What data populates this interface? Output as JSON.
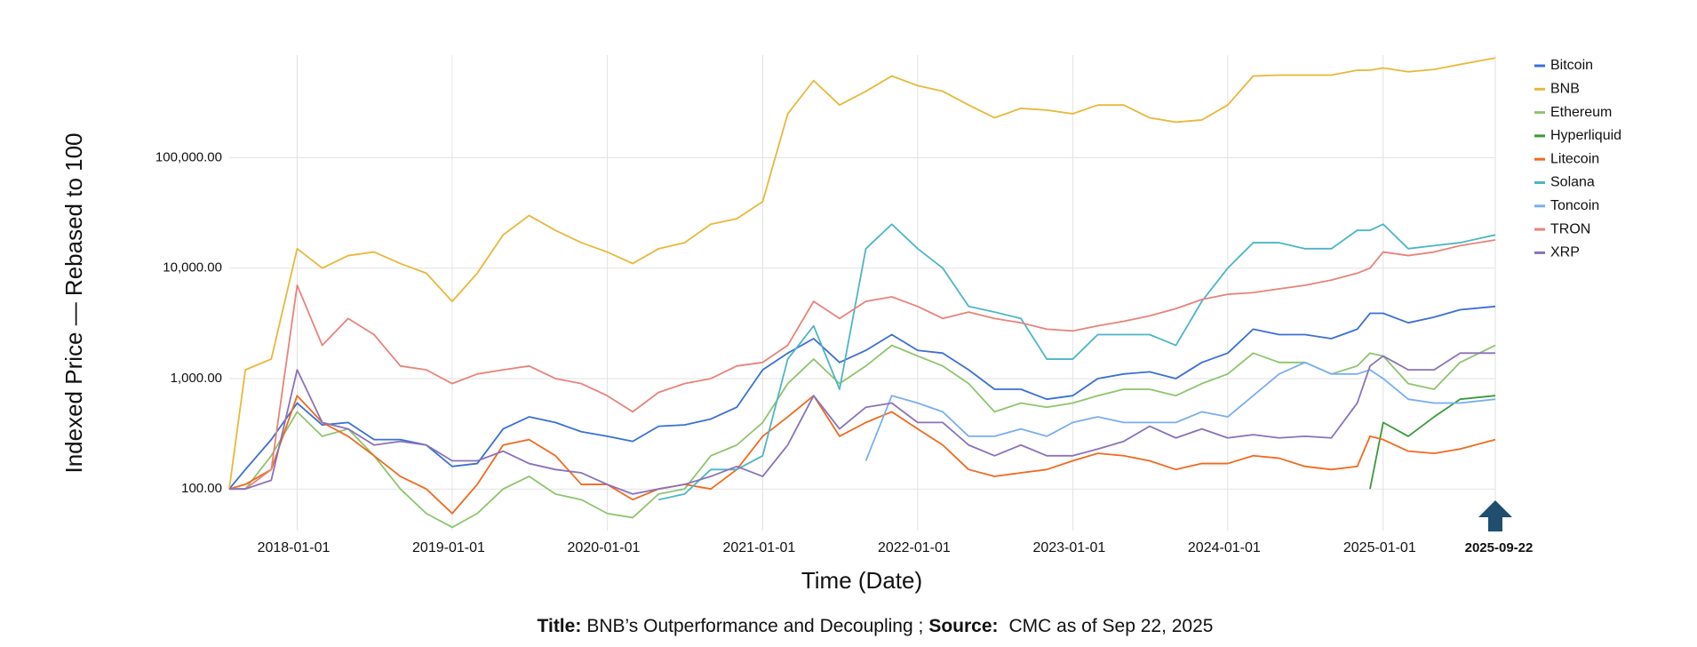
{
  "chart_data": {
    "type": "line",
    "y_label": "Indexed Price — Rebased to 100",
    "x_label": "Time (Date)",
    "caption": {
      "title_label": "Title:",
      "title": "BNB’s Outperformance and Decoupling ;",
      "source_label": "Source:",
      "source": "CMC as of Sep 22, 2025"
    },
    "log_y": true,
    "grid": true,
    "legend": "right",
    "xlim": [
      "2017-07-25",
      "2025-09-22"
    ],
    "xticks": [
      "2018-01-01",
      "2019-01-01",
      "2020-01-01",
      "2021-01-01",
      "2022-01-01",
      "2023-01-01",
      "2024-01-01",
      "2025-01-01",
      "2025-09-22"
    ],
    "ylim": [
      42,
      850000
    ],
    "yticks": [
      {
        "value": 100,
        "label": "100.00"
      },
      {
        "value": 1000,
        "label": "1,000.00"
      },
      {
        "value": 10000,
        "label": "10,000.00"
      },
      {
        "value": 100000,
        "label": "100,000.00"
      }
    ],
    "x": [
      "2017-07-25",
      "2017-09-01",
      "2017-11-01",
      "2018-01-01",
      "2018-03-01",
      "2018-05-01",
      "2018-07-01",
      "2018-09-01",
      "2018-11-01",
      "2019-01-01",
      "2019-03-01",
      "2019-05-01",
      "2019-07-01",
      "2019-09-01",
      "2019-11-01",
      "2020-01-01",
      "2020-03-01",
      "2020-05-01",
      "2020-07-01",
      "2020-09-01",
      "2020-11-01",
      "2021-01-01",
      "2021-03-01",
      "2021-05-01",
      "2021-07-01",
      "2021-09-01",
      "2021-11-01",
      "2022-01-01",
      "2022-03-01",
      "2022-05-01",
      "2022-07-01",
      "2022-09-01",
      "2022-11-01",
      "2023-01-01",
      "2023-03-01",
      "2023-05-01",
      "2023-07-01",
      "2023-09-01",
      "2023-11-01",
      "2024-01-01",
      "2024-03-01",
      "2024-05-01",
      "2024-07-01",
      "2024-09-01",
      "2024-11-01",
      "2024-12-01",
      "2025-01-01",
      "2025-03-01",
      "2025-05-01",
      "2025-07-01",
      "2025-09-22"
    ],
    "series": [
      {
        "name": "Bitcoin",
        "color": "#3b6fd6",
        "values": [
          100,
          150,
          280,
          600,
          380,
          400,
          280,
          280,
          250,
          160,
          170,
          350,
          450,
          400,
          330,
          300,
          270,
          370,
          380,
          430,
          550,
          1200,
          1700,
          2300,
          1400,
          1800,
          2500,
          1800,
          1700,
          1200,
          800,
          800,
          650,
          700,
          1000,
          1100,
          1150,
          1000,
          1400,
          1700,
          2800,
          2500,
          2500,
          2300,
          2800,
          3900,
          3900,
          3200,
          3600,
          4200,
          4500
        ]
      },
      {
        "name": "BNB",
        "color": "#e8b83a",
        "values": [
          100,
          1200,
          1500,
          15000,
          10000,
          13000,
          14000,
          11000,
          9000,
          5000,
          9000,
          20000,
          30000,
          22000,
          17000,
          14000,
          11000,
          15000,
          17000,
          25000,
          28000,
          40000,
          250000,
          500000,
          300000,
          400000,
          550000,
          450000,
          400000,
          300000,
          230000,
          280000,
          270000,
          250000,
          300000,
          300000,
          230000,
          210000,
          220000,
          300000,
          550000,
          560000,
          560000,
          560000,
          620000,
          620000,
          650000,
          600000,
          630000,
          700000,
          800000
        ]
      },
      {
        "name": "Ethereum",
        "color": "#8fc46e",
        "values": [
          100,
          100,
          200,
          500,
          300,
          350,
          200,
          100,
          60,
          45,
          60,
          100,
          130,
          90,
          80,
          60,
          55,
          90,
          100,
          200,
          250,
          400,
          900,
          1500,
          900,
          1300,
          2000,
          1600,
          1300,
          900,
          500,
          600,
          550,
          600,
          700,
          800,
          800,
          700,
          900,
          1100,
          1700,
          1400,
          1400,
          1100,
          1300,
          1700,
          1600,
          900,
          800,
          1400,
          2000
        ]
      },
      {
        "name": "Hyperliquid",
        "color": "#3a9a3a",
        "values": [
          null,
          null,
          null,
          null,
          null,
          null,
          null,
          null,
          null,
          null,
          null,
          null,
          null,
          null,
          null,
          null,
          null,
          null,
          null,
          null,
          null,
          null,
          null,
          null,
          null,
          null,
          null,
          null,
          null,
          null,
          null,
          null,
          null,
          null,
          null,
          null,
          null,
          null,
          null,
          null,
          null,
          null,
          null,
          null,
          null,
          100,
          400,
          300,
          450,
          650,
          700
        ]
      },
      {
        "name": "Litecoin",
        "color": "#f06a1e",
        "values": [
          100,
          110,
          150,
          700,
          400,
          300,
          200,
          130,
          100,
          60,
          110,
          250,
          280,
          200,
          110,
          110,
          80,
          100,
          110,
          100,
          150,
          300,
          450,
          700,
          300,
          400,
          500,
          350,
          250,
          150,
          130,
          140,
          150,
          180,
          210,
          200,
          180,
          150,
          170,
          170,
          200,
          190,
          160,
          150,
          160,
          300,
          280,
          220,
          210,
          230,
          280
        ]
      },
      {
        "name": "Solana",
        "color": "#4cb6c4",
        "values": [
          null,
          null,
          null,
          null,
          null,
          null,
          null,
          null,
          null,
          null,
          null,
          null,
          null,
          null,
          null,
          null,
          null,
          80,
          90,
          150,
          150,
          200,
          1500,
          3000,
          800,
          15000,
          25000,
          15000,
          10000,
          4500,
          4000,
          3500,
          1500,
          1500,
          2500,
          2500,
          2500,
          2000,
          5000,
          10000,
          17000,
          17000,
          15000,
          15000,
          22000,
          22000,
          25000,
          15000,
          16000,
          17000,
          20000
        ]
      },
      {
        "name": "Toncoin",
        "color": "#7aaef0",
        "values": [
          null,
          null,
          null,
          null,
          null,
          null,
          null,
          null,
          null,
          null,
          null,
          null,
          null,
          null,
          null,
          null,
          null,
          null,
          null,
          null,
          null,
          null,
          null,
          null,
          null,
          180,
          700,
          600,
          500,
          300,
          300,
          350,
          300,
          400,
          450,
          400,
          400,
          400,
          500,
          450,
          700,
          1100,
          1400,
          1100,
          1100,
          1200,
          1000,
          650,
          600,
          600,
          650
        ]
      },
      {
        "name": "TRON",
        "color": "#e8837a",
        "values": [
          100,
          100,
          150,
          7000,
          2000,
          3500,
          2500,
          1300,
          1200,
          900,
          1100,
          1200,
          1300,
          1000,
          900,
          700,
          500,
          750,
          900,
          1000,
          1300,
          1400,
          2000,
          5000,
          3500,
          5000,
          5500,
          4500,
          3500,
          4000,
          3500,
          3200,
          2800,
          2700,
          3000,
          3300,
          3700,
          4300,
          5200,
          5800,
          6000,
          6500,
          7000,
          7800,
          9000,
          10000,
          14000,
          13000,
          14000,
          16000,
          18000
        ]
      },
      {
        "name": "XRP",
        "color": "#8a72b8",
        "values": [
          100,
          100,
          120,
          1200,
          400,
          350,
          250,
          270,
          250,
          180,
          180,
          220,
          170,
          150,
          140,
          110,
          90,
          100,
          110,
          130,
          160,
          130,
          250,
          700,
          350,
          550,
          600,
          400,
          400,
          250,
          200,
          250,
          200,
          200,
          230,
          270,
          370,
          290,
          350,
          290,
          310,
          290,
          300,
          290,
          600,
          1300,
          1600,
          1200,
          1200,
          1700,
          1700
        ]
      }
    ]
  }
}
